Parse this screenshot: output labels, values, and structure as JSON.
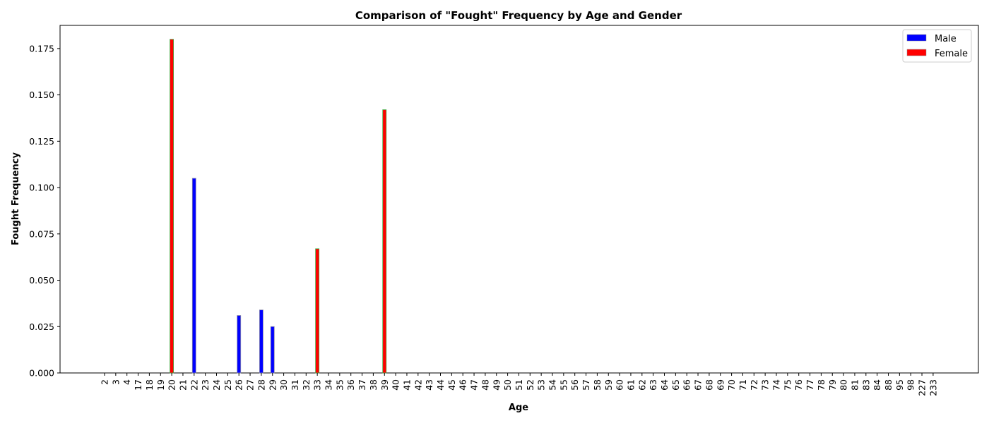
{
  "chart_data": {
    "type": "bar",
    "title": "Comparison of \"Fought\" Frequency by Age and Gender",
    "xlabel": "Age",
    "ylabel": "Fought Frequency",
    "ylim": [
      0,
      0.1875
    ],
    "yticks": [
      "0.000",
      "0.025",
      "0.050",
      "0.075",
      "0.100",
      "0.125",
      "0.150",
      "0.175"
    ],
    "ytick_values": [
      0,
      0.025,
      0.05,
      0.075,
      0.1,
      0.125,
      0.15,
      0.175
    ],
    "grid": false,
    "legend_position": "top-right",
    "categories": [
      "2",
      "3",
      "4",
      "17",
      "18",
      "19",
      "20",
      "21",
      "22",
      "23",
      "24",
      "25",
      "26",
      "27",
      "28",
      "29",
      "30",
      "31",
      "32",
      "33",
      "34",
      "35",
      "36",
      "37",
      "38",
      "39",
      "40",
      "41",
      "42",
      "43",
      "44",
      "45",
      "46",
      "47",
      "48",
      "49",
      "50",
      "51",
      "52",
      "53",
      "54",
      "55",
      "56",
      "57",
      "58",
      "59",
      "60",
      "61",
      "62",
      "63",
      "64",
      "65",
      "66",
      "67",
      "68",
      "69",
      "70",
      "71",
      "72",
      "73",
      "74",
      "75",
      "76",
      "77",
      "78",
      "79",
      "80",
      "81",
      "83",
      "84",
      "88",
      "95",
      "98",
      "227",
      "233"
    ],
    "series": [
      {
        "name": "Male",
        "color": "#0000ff",
        "values": [
          0,
          0,
          0,
          0,
          0,
          0,
          0,
          0,
          0.105,
          0,
          0,
          0,
          0.031,
          0,
          0.034,
          0.025,
          0,
          0,
          0,
          0,
          0,
          0,
          0,
          0,
          0,
          0,
          0,
          0,
          0,
          0,
          0,
          0,
          0,
          0,
          0,
          0,
          0,
          0,
          0,
          0,
          0,
          0,
          0,
          0,
          0,
          0,
          0,
          0,
          0,
          0,
          0,
          0,
          0,
          0,
          0,
          0,
          0,
          0,
          0,
          0,
          0,
          0,
          0,
          0,
          0,
          0,
          0,
          0,
          0,
          0,
          0,
          0,
          0,
          0,
          0
        ]
      },
      {
        "name": "Female",
        "color": "#ff0000",
        "values": [
          0,
          0,
          0,
          0,
          0,
          0,
          0.18,
          0,
          0,
          0,
          0,
          0,
          0,
          0,
          0,
          0,
          0,
          0,
          0,
          0.067,
          0,
          0,
          0,
          0,
          0,
          0.142,
          0,
          0,
          0,
          0,
          0,
          0,
          0,
          0,
          0,
          0,
          0,
          0,
          0,
          0,
          0,
          0,
          0,
          0,
          0,
          0,
          0,
          0,
          0,
          0,
          0,
          0,
          0,
          0,
          0,
          0,
          0,
          0,
          0,
          0,
          0,
          0,
          0,
          0,
          0,
          0,
          0,
          0,
          0,
          0,
          0,
          0,
          0,
          0,
          0
        ]
      }
    ]
  }
}
